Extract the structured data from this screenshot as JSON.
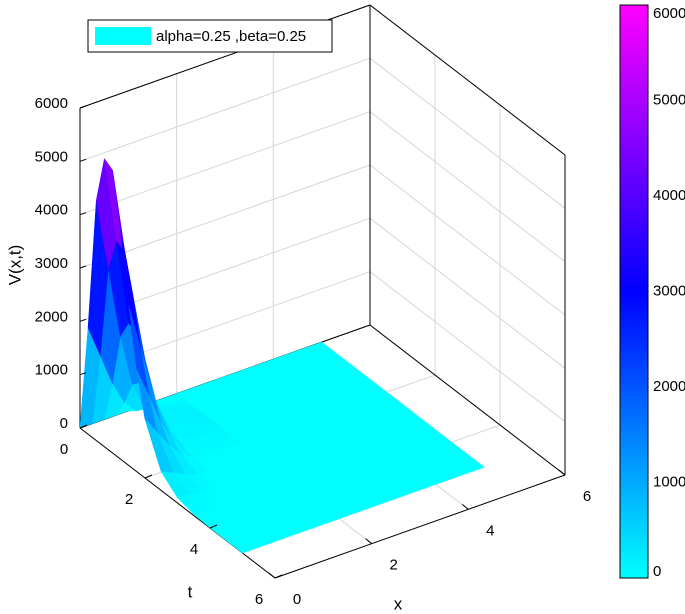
{
  "chart_data": {
    "type": "surface",
    "xlabel": "x",
    "tlabel": "t",
    "zlabel": "V(x,t)",
    "x": [
      0,
      0.25,
      0.5,
      0.75,
      1,
      2,
      3,
      4,
      5
    ],
    "t": [
      0,
      0.25,
      0.5,
      0.75,
      1,
      1.25,
      1.5,
      1.75,
      2,
      2.5,
      3,
      3.5,
      4,
      5
    ],
    "series": [
      {
        "name": "alpha=0.25 ,beta=0.25",
        "color": "#00ffff",
        "z": [
          [
            0,
            0,
            0,
            0,
            0,
            0,
            0,
            0,
            0
          ],
          [
            2000,
            1400,
            800,
            360,
            120,
            0,
            0,
            0,
            0
          ],
          [
            4500,
            3150,
            1800,
            810,
            270,
            0,
            0,
            0,
            0
          ],
          [
            5400,
            3780,
            2160,
            972,
            324,
            0,
            0,
            0,
            0
          ],
          [
            5300,
            3710,
            2120,
            954,
            318,
            0,
            0,
            0,
            0
          ],
          [
            4300,
            3010,
            1720,
            774,
            258,
            0,
            0,
            0,
            0
          ],
          [
            3000,
            2100,
            1200,
            540,
            180,
            0,
            0,
            0,
            0
          ],
          [
            1900,
            1330,
            760,
            342,
            114,
            0,
            0,
            0,
            0
          ],
          [
            1100,
            770,
            440,
            198,
            66,
            0,
            0,
            0,
            0
          ],
          [
            350,
            245,
            140,
            63,
            21,
            0,
            0,
            0,
            0
          ],
          [
            100,
            70,
            40,
            18,
            6,
            0,
            0,
            0,
            0
          ],
          [
            25,
            18,
            10,
            5,
            2,
            0,
            0,
            0,
            0
          ],
          [
            5,
            4,
            2,
            1,
            0,
            0,
            0,
            0,
            0
          ],
          [
            0,
            0,
            0,
            0,
            0,
            0,
            0,
            0,
            0
          ]
        ]
      }
    ],
    "xlim": [
      0,
      6
    ],
    "tlim": [
      0,
      6
    ],
    "zlim": [
      0,
      6000
    ],
    "xticks": [
      0,
      2,
      4,
      6
    ],
    "tticks": [
      0,
      2,
      4,
      6
    ],
    "zticks": [
      0,
      1000,
      2000,
      3000,
      4000,
      5000,
      6000
    ],
    "grid": true,
    "colormap": [
      "#00ffff",
      "#0000ff",
      "#ff00ff"
    ],
    "clim": [
      0,
      6000
    ],
    "cticks": [
      0,
      1000,
      2000,
      3000,
      4000,
      5000,
      6000
    ]
  }
}
